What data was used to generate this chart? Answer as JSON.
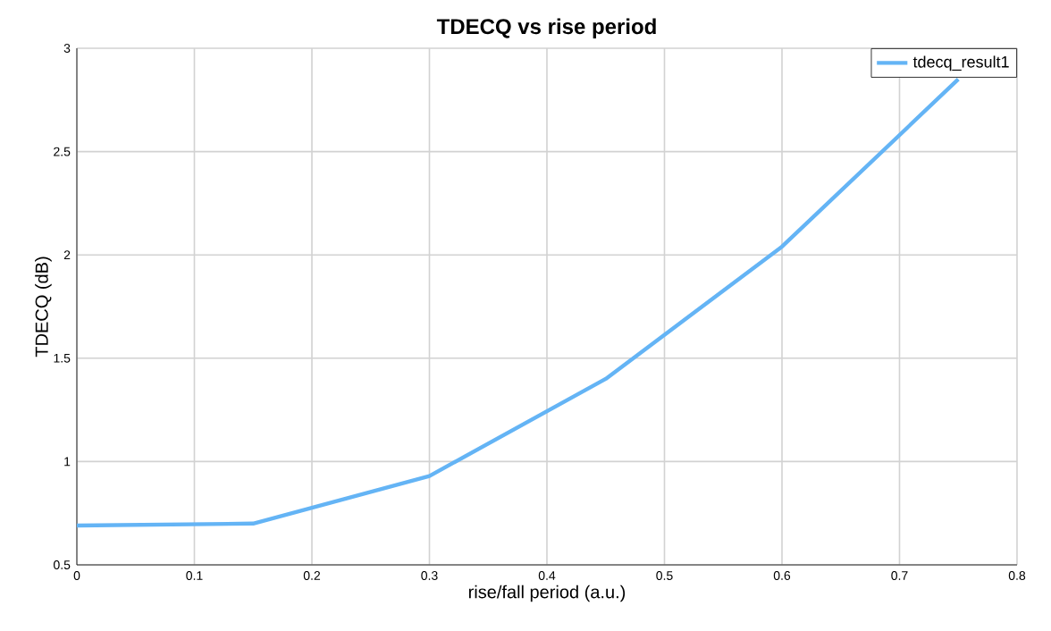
{
  "chart_data": {
    "type": "line",
    "title": "TDECQ vs rise period",
    "xlabel": "rise/fall period (a.u.)",
    "ylabel": "TDECQ (dB)",
    "x": [
      0,
      0.15,
      0.3,
      0.45,
      0.6,
      0.75
    ],
    "series": [
      {
        "name": "tdecq_result1",
        "color": "#64b4f5",
        "values": [
          0.69,
          0.7,
          0.93,
          1.4,
          2.04,
          2.85
        ]
      }
    ],
    "xlim": [
      0,
      0.8
    ],
    "ylim": [
      0.5,
      3
    ],
    "xticks": [
      0,
      0.1,
      0.2,
      0.3,
      0.4,
      0.5,
      0.6,
      0.7,
      0.8
    ],
    "yticks": [
      0.5,
      1,
      1.5,
      2,
      2.5,
      3
    ],
    "grid": true,
    "legend": "top right",
    "marker": "none",
    "line_style": "solid"
  }
}
